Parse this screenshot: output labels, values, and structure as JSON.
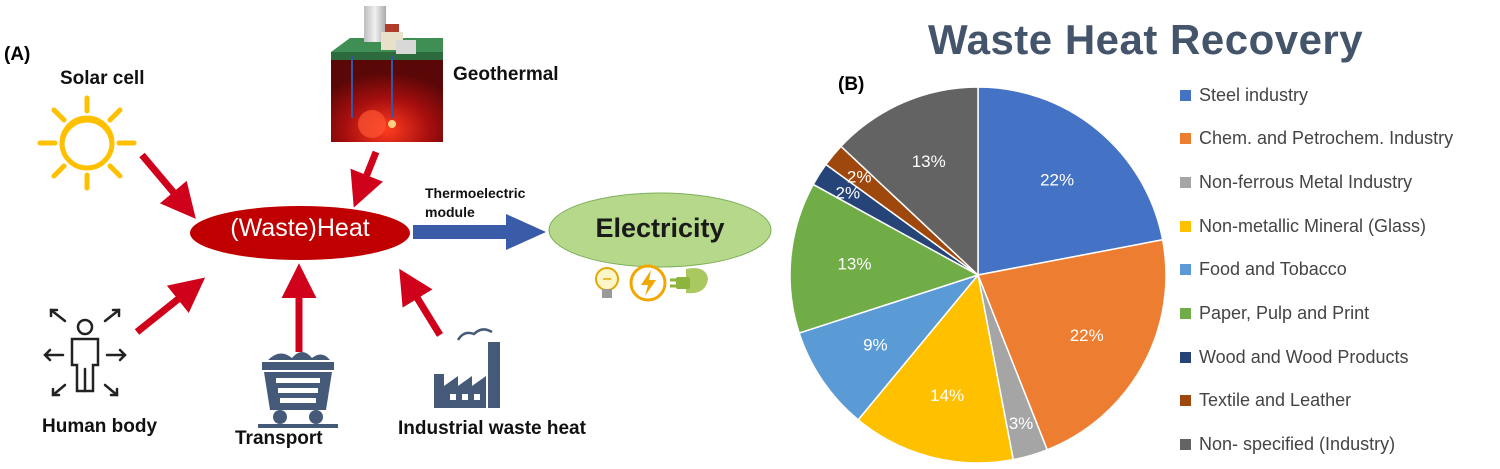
{
  "panel_a": {
    "label": "(A)",
    "sources": {
      "solar": "Solar cell",
      "geothermal": "Geothermal",
      "human": "Human body",
      "transport": "Transport",
      "industrial": "Industrial waste heat"
    },
    "center": "(Waste)Heat",
    "module_line1": "Thermoelectric",
    "module_line2": "module",
    "output": "Electricity",
    "icons": [
      "sun-icon",
      "geothermal-plant-icon",
      "human-body-icon",
      "mine-cart-icon",
      "factory-icon",
      "light-bulb-icon",
      "lightning-icon",
      "plug-leaf-icon"
    ],
    "colors": {
      "heat": "#c00000",
      "arrow": "#d0021b",
      "module_arrow": "#3a5ba8",
      "electricity": "#b5d88a"
    }
  },
  "panel_b": {
    "label": "(B)"
  },
  "chart_data": {
    "type": "pie",
    "title": "Waste Heat Recovery",
    "legend_position": "right",
    "slices": [
      {
        "label": "Steel  industry",
        "value": 22,
        "display": "22%",
        "color": "#4472c4"
      },
      {
        "label": "Chem. and Petrochem. Industry",
        "value": 22,
        "display": "22%",
        "color": "#ed7d31"
      },
      {
        "label": "Non-ferrous Metal Industry",
        "value": 3,
        "display": "3%",
        "color": "#a5a5a5"
      },
      {
        "label": "Non-metallic Mineral (Glass)",
        "value": 14,
        "display": "14%",
        "color": "#ffc000"
      },
      {
        "label": "Food and Tobacco",
        "value": 9,
        "display": "9%",
        "color": "#5b9bd5"
      },
      {
        "label": "Paper, Pulp and Print",
        "value": 13,
        "display": "13%",
        "color": "#70ad47"
      },
      {
        "label": "Wood and Wood Products",
        "value": 2,
        "display": "2%",
        "color": "#264478"
      },
      {
        "label": "Textile and Leather",
        "value": 2,
        "display": "2%",
        "color": "#9e480e"
      },
      {
        "label": "Non- specified (Industry)",
        "value": 13,
        "display": "13%",
        "color": "#636363"
      }
    ]
  }
}
